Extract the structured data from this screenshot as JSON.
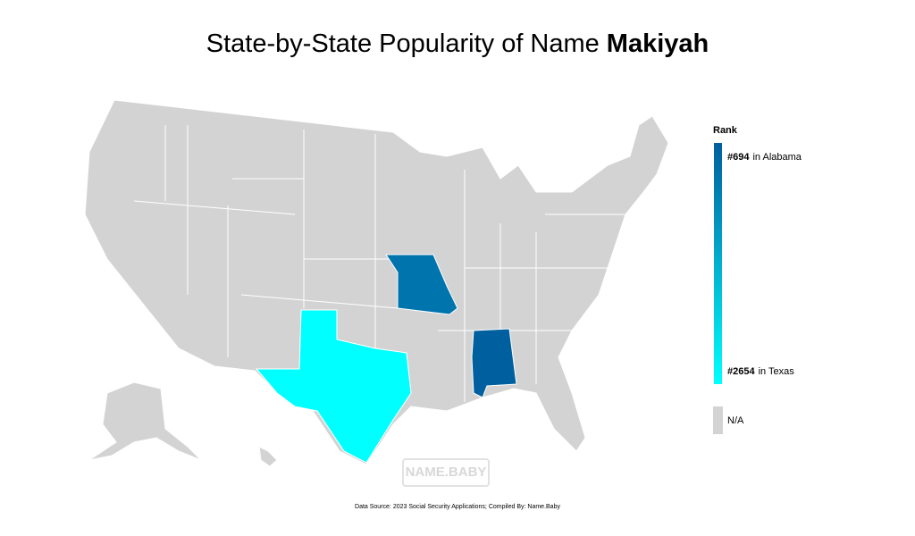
{
  "header": {
    "title": "State-by-State Popularity of Name",
    "name": "Makiyah"
  },
  "legend": {
    "title": "Rank",
    "top": {
      "rank": "#694",
      "state": "in Alabama"
    },
    "bottom": {
      "rank": "#2654",
      "state": "in Texas"
    },
    "gradient": [
      "#005f9e",
      "#00ffff"
    ],
    "na_color": "#d3d3d3",
    "na_label": "N/A"
  },
  "watermark": "NAME.BABY",
  "footer": "Data Source: 2023 Social Security Applications; Compiled By: Name.Baby"
}
